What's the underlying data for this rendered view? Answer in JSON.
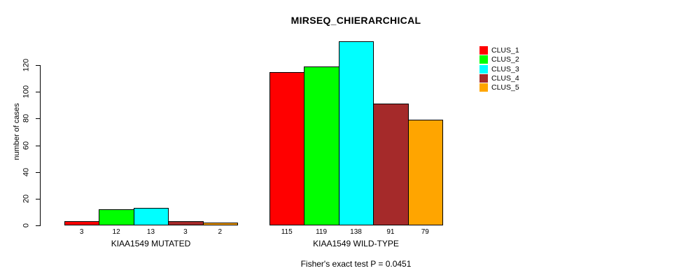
{
  "chart_data": {
    "type": "bar",
    "title": "MIRSEQ_CHIERARCHICAL",
    "ylabel": "number of cases",
    "xlabel": "",
    "groups": [
      "KIAA1549 MUTATED",
      "KIAA1549 WILD-TYPE"
    ],
    "series": [
      {
        "name": "CLUS_1",
        "color": "#FF0000",
        "values": [
          3,
          115
        ]
      },
      {
        "name": "CLUS_2",
        "color": "#00FF00",
        "values": [
          12,
          119
        ]
      },
      {
        "name": "CLUS_3",
        "color": "#00FFFF",
        "values": [
          13,
          138
        ]
      },
      {
        "name": "CLUS_4",
        "color": "#A52A2A",
        "values": [
          3,
          91
        ]
      },
      {
        "name": "CLUS_5",
        "color": "#FFA500",
        "values": [
          2,
          79
        ]
      }
    ],
    "yticks": [
      0,
      20,
      40,
      60,
      80,
      100,
      120
    ],
    "ylim": [
      0,
      140
    ],
    "bar_value_labels": true,
    "grid": false,
    "legend_position": "right",
    "axis_color": "#000000",
    "bar_border_color": "#000000",
    "background": "#FFFFFF",
    "annotation": "Fisher's exact test P = 0.0451"
  }
}
